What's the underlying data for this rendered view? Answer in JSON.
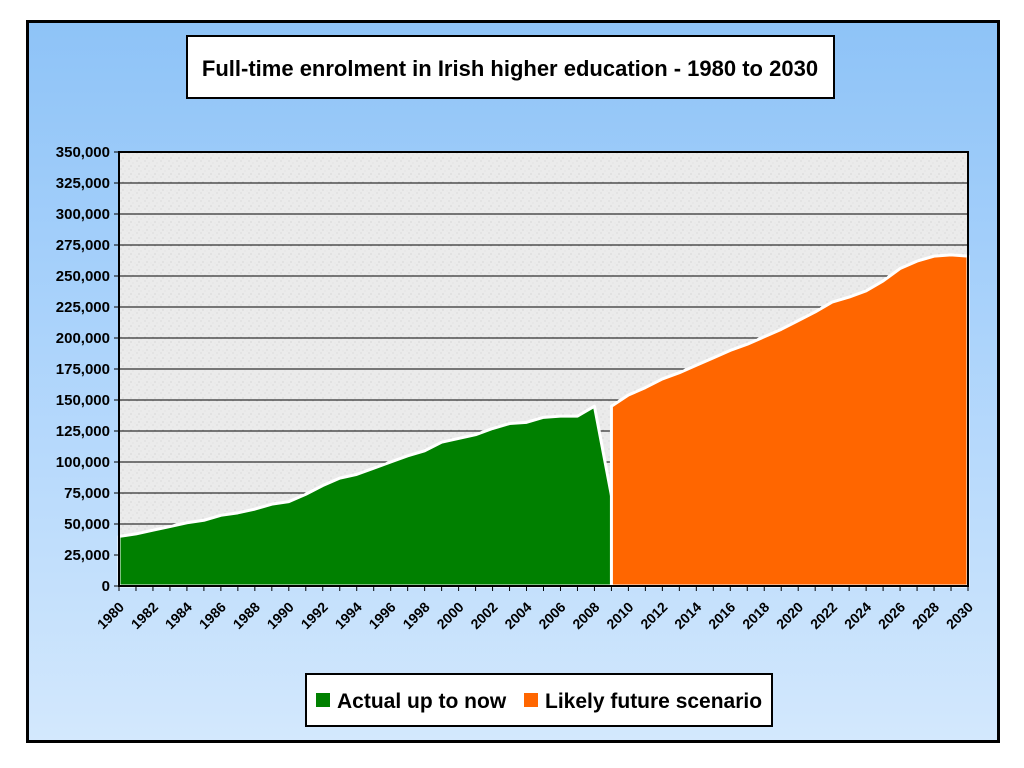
{
  "chart_data": {
    "type": "area",
    "title": "Full-time enrolment in Irish higher education - 1980 to 2030",
    "xlabel": "",
    "ylabel": "",
    "ylim": [
      0,
      350000
    ],
    "xlim": [
      1980,
      2030
    ],
    "grid": true,
    "legend_position": "bottom",
    "y_ticks": [
      "0",
      "25,000",
      "50,000",
      "75,000",
      "100,000",
      "125,000",
      "150,000",
      "175,000",
      "200,000",
      "225,000",
      "250,000",
      "275,000",
      "300,000",
      "325,000",
      "350,000"
    ],
    "x_tick_labels": [
      "1980",
      "1982",
      "1984",
      "1986",
      "1988",
      "1990",
      "1992",
      "1994",
      "1996",
      "1998",
      "2000",
      "2002",
      "2004",
      "2006",
      "2008",
      "2010",
      "2012",
      "2014",
      "2016",
      "2018",
      "2020",
      "2022",
      "2024",
      "2026",
      "2028",
      "2030"
    ],
    "series": [
      {
        "name": "Actual up to now",
        "color": "#008000",
        "x": [
          1980,
          1981,
          1982,
          1983,
          1984,
          1985,
          1986,
          1987,
          1988,
          1989,
          1990,
          1991,
          1992,
          1993,
          1994,
          1995,
          1996,
          1997,
          1998,
          1999,
          2000,
          2001,
          2002,
          2003,
          2004,
          2005,
          2006,
          2007,
          2008,
          2009,
          2010
        ],
        "y": [
          40000,
          42000,
          45000,
          48000,
          51000,
          53000,
          57000,
          59000,
          62000,
          66000,
          68000,
          74000,
          81000,
          87000,
          90000,
          95000,
          100000,
          105000,
          109000,
          116000,
          119000,
          122000,
          127000,
          131000,
          132000,
          136000,
          137000,
          137000,
          145000,
          73000,
          0
        ]
      },
      {
        "name": "Likely future scenario",
        "color": "#ff6600",
        "x": [
          2009,
          2010,
          2011,
          2012,
          2013,
          2014,
          2015,
          2016,
          2017,
          2018,
          2019,
          2020,
          2021,
          2022,
          2023,
          2024,
          2025,
          2026,
          2027,
          2028,
          2029,
          2030
        ],
        "y": [
          145000,
          154000,
          160000,
          167000,
          172000,
          178000,
          184000,
          190000,
          195000,
          201000,
          207000,
          214000,
          221000,
          229000,
          233000,
          238000,
          246000,
          256000,
          262000,
          266000,
          267000,
          266000
        ]
      }
    ]
  },
  "legend": {
    "items": [
      {
        "label": "Actual up to now",
        "color": "#008000"
      },
      {
        "label": "Likely future scenario",
        "color": "#ff6600"
      }
    ]
  }
}
